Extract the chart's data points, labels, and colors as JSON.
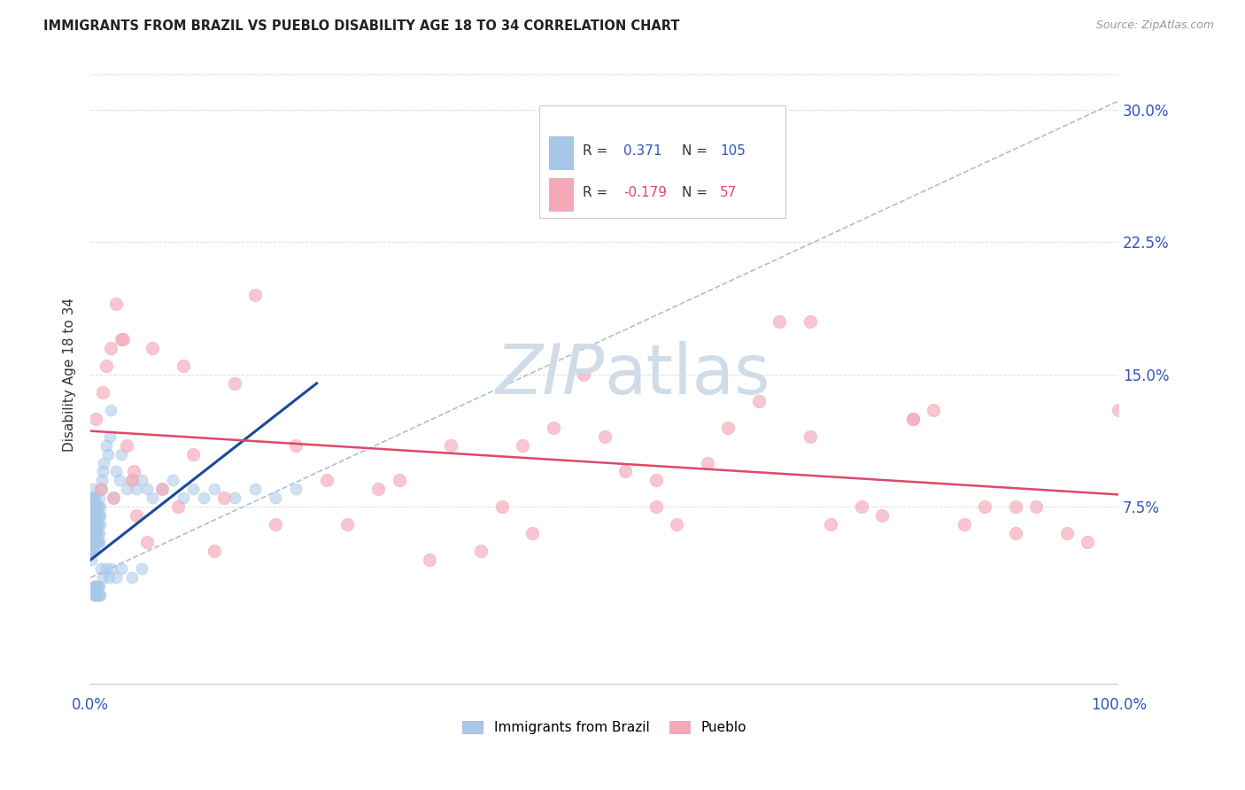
{
  "title": "IMMIGRANTS FROM BRAZIL VS PUEBLO DISABILITY AGE 18 TO 34 CORRELATION CHART",
  "source": "Source: ZipAtlas.com",
  "ylabel": "Disability Age 18 to 34",
  "xlim": [
    0,
    100
  ],
  "ylim": [
    -3,
    33
  ],
  "ytick_labels": [
    "7.5%",
    "15.0%",
    "22.5%",
    "30.0%"
  ],
  "ytick_values": [
    7.5,
    15.0,
    22.5,
    30.0
  ],
  "xtick_values": [
    0,
    10,
    20,
    30,
    40,
    50,
    60,
    70,
    80,
    90,
    100
  ],
  "brazil_color": "#a8c8e8",
  "pueblo_color": "#f4a8b8",
  "brazil_trend_color": "#1a4a9a",
  "pueblo_trend_color": "#e04868",
  "dashed_line_color": "#a8c0d8",
  "watermark_color": "#d0dce8",
  "brazil_trend_x0": 0,
  "brazil_trend_x1": 22,
  "brazil_trend_y0": 4.5,
  "brazil_trend_y1": 14.5,
  "pueblo_trend_x0": 0,
  "pueblo_trend_x1": 100,
  "pueblo_trend_y0": 11.8,
  "pueblo_trend_y1": 8.2,
  "dashed_trend_x0": 0,
  "dashed_trend_x1": 100,
  "dashed_trend_y0": 3.5,
  "dashed_trend_y1": 30.5,
  "brazil_scatter_x": [
    0.05,
    0.07,
    0.08,
    0.09,
    0.1,
    0.1,
    0.11,
    0.12,
    0.13,
    0.14,
    0.15,
    0.15,
    0.16,
    0.17,
    0.18,
    0.19,
    0.2,
    0.2,
    0.22,
    0.23,
    0.24,
    0.25,
    0.25,
    0.26,
    0.27,
    0.28,
    0.3,
    0.3,
    0.32,
    0.33,
    0.35,
    0.35,
    0.37,
    0.4,
    0.4,
    0.42,
    0.43,
    0.45,
    0.47,
    0.48,
    0.5,
    0.52,
    0.55,
    0.57,
    0.58,
    0.6,
    0.62,
    0.65,
    0.67,
    0.7,
    0.72,
    0.75,
    0.78,
    0.8,
    0.83,
    0.85,
    0.87,
    0.9,
    0.92,
    0.95,
    1.0,
    1.1,
    1.2,
    1.3,
    1.5,
    1.7,
    1.9,
    2.0,
    2.2,
    2.5,
    2.8,
    3.0,
    3.5,
    4.0,
    4.5,
    5.0,
    5.5,
    6.0,
    7.0,
    8.0,
    9.0,
    10.0,
    11.0,
    12.0,
    14.0,
    16.0,
    18.0,
    20.0,
    0.3,
    0.35,
    0.4,
    0.45,
    0.5,
    0.55,
    0.6,
    0.65,
    0.7,
    0.75,
    0.8,
    0.85,
    0.9,
    1.0,
    1.2,
    1.5,
    1.8,
    2.0,
    2.5,
    3.0,
    4.0,
    5.0
  ],
  "brazil_scatter_y": [
    5.0,
    6.0,
    4.5,
    5.5,
    6.0,
    7.0,
    5.0,
    6.5,
    5.5,
    7.0,
    6.0,
    8.0,
    5.5,
    7.0,
    6.5,
    7.5,
    5.0,
    8.5,
    6.0,
    5.5,
    7.0,
    6.0,
    8.0,
    5.5,
    7.0,
    6.5,
    5.0,
    7.5,
    6.0,
    8.0,
    5.5,
    7.0,
    6.5,
    5.0,
    8.0,
    5.5,
    7.0,
    6.0,
    7.5,
    5.5,
    6.5,
    7.0,
    5.5,
    7.5,
    6.0,
    7.5,
    6.5,
    5.5,
    7.0,
    6.0,
    7.5,
    5.5,
    6.5,
    7.0,
    6.0,
    8.0,
    5.5,
    7.0,
    6.5,
    7.5,
    8.5,
    9.0,
    9.5,
    10.0,
    11.0,
    10.5,
    11.5,
    13.0,
    8.0,
    9.5,
    9.0,
    10.5,
    8.5,
    9.0,
    8.5,
    9.0,
    8.5,
    8.0,
    8.5,
    9.0,
    8.0,
    8.5,
    8.0,
    8.5,
    8.0,
    8.5,
    8.0,
    8.5,
    2.5,
    3.0,
    2.5,
    3.0,
    2.5,
    3.0,
    2.5,
    3.0,
    2.5,
    3.0,
    2.5,
    3.0,
    2.5,
    4.0,
    3.5,
    4.0,
    3.5,
    4.0,
    3.5,
    4.0,
    3.5,
    4.0
  ],
  "pueblo_scatter_x": [
    0.5,
    1.0,
    1.5,
    2.0,
    2.5,
    3.0,
    3.5,
    4.0,
    4.5,
    5.5,
    7.0,
    8.5,
    10.0,
    12.0,
    14.0,
    16.0,
    18.0,
    20.0,
    23.0,
    25.0,
    28.0,
    30.0,
    33.0,
    35.0,
    38.0,
    40.0,
    43.0,
    45.0,
    48.0,
    50.0,
    52.0,
    55.0,
    57.0,
    60.0,
    62.0,
    65.0,
    67.0,
    70.0,
    72.0,
    75.0,
    77.0,
    80.0,
    82.0,
    85.0,
    87.0,
    90.0,
    92.0,
    95.0,
    97.0,
    100.0,
    1.2,
    2.2,
    3.2,
    4.2,
    6.0,
    9.0,
    13.0,
    42.0,
    55.0,
    70.0,
    80.0,
    90.0
  ],
  "pueblo_scatter_y": [
    12.5,
    8.5,
    15.5,
    16.5,
    19.0,
    17.0,
    11.0,
    9.0,
    7.0,
    5.5,
    8.5,
    7.5,
    10.5,
    5.0,
    14.5,
    19.5,
    6.5,
    11.0,
    9.0,
    6.5,
    8.5,
    9.0,
    4.5,
    11.0,
    5.0,
    7.5,
    6.0,
    12.0,
    15.0,
    11.5,
    9.5,
    7.5,
    6.5,
    10.0,
    12.0,
    13.5,
    18.0,
    18.0,
    6.5,
    7.5,
    7.0,
    12.5,
    13.0,
    6.5,
    7.5,
    6.0,
    7.5,
    6.0,
    5.5,
    13.0,
    14.0,
    8.0,
    17.0,
    9.5,
    16.5,
    15.5,
    8.0,
    11.0,
    9.0,
    11.5,
    12.5,
    7.5
  ]
}
